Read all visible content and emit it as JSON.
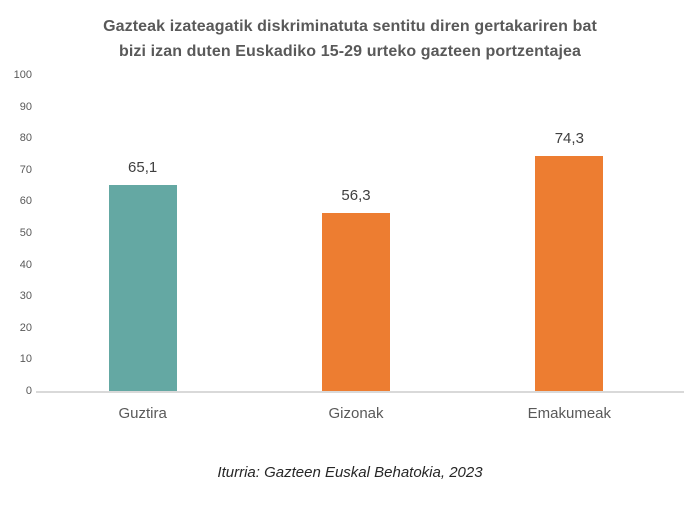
{
  "title_lines": [
    "Gazteak izateagatik diskriminatuta sentitu diren gertakariren bat",
    "bizi izan duten Euskadiko 15-29 urteko gazteen portzentajea"
  ],
  "chart_data": {
    "type": "bar",
    "title": "Gazteak izateagatik diskriminatuta sentitu diren gertakariren bat bizi izan duten Euskadiko 15-29 urteko gazteen portzentajea",
    "categories": [
      "Guztira",
      "Gizonak",
      "Emakumeak"
    ],
    "values": [
      65.1,
      56.3,
      74.3
    ],
    "value_labels": [
      "65,1",
      "56,3",
      "74,3"
    ],
    "bar_colors": [
      "#64A8A3",
      "#ED7D31",
      "#ED7D31"
    ],
    "xlabel": "",
    "ylabel": "",
    "ylim": [
      0,
      100
    ],
    "yticks": [
      0,
      10,
      20,
      30,
      40,
      50,
      60,
      70,
      80,
      90,
      100
    ],
    "grid": false,
    "legend": "none"
  },
  "footer": {
    "source": "Iturria: Gazteen Euskal Behatokia, 2023"
  },
  "colors": {
    "background": "#FFFFFF",
    "title_text": "#595959",
    "axis_labels": "#595959",
    "data_labels": "#3F3F3F",
    "baseline": "#D9D9D9",
    "teal_bar": "#64A8A3",
    "orange_bar": "#ED7D31"
  }
}
